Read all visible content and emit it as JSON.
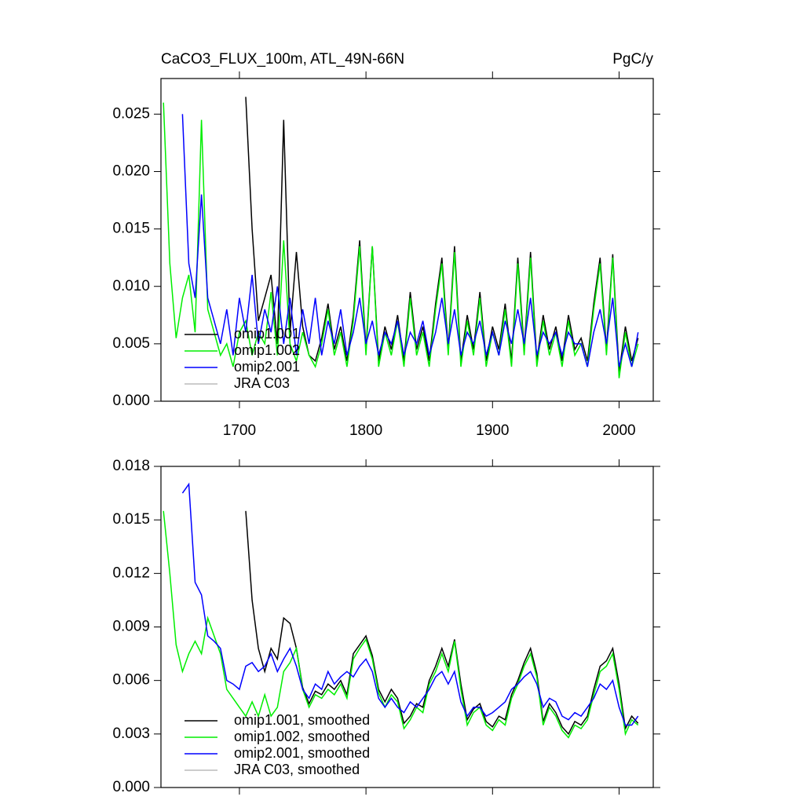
{
  "chart_data": [
    {
      "type": "line",
      "title": "CaCO3_FLUX_100m, ATL_49N-66N",
      "units": "PgC/y",
      "x": [
        1640,
        1645,
        1650,
        1655,
        1660,
        1665,
        1670,
        1675,
        1680,
        1685,
        1690,
        1695,
        1700,
        1705,
        1710,
        1715,
        1720,
        1725,
        1730,
        1735,
        1740,
        1745,
        1750,
        1755,
        1760,
        1765,
        1770,
        1775,
        1780,
        1785,
        1790,
        1795,
        1800,
        1805,
        1810,
        1815,
        1820,
        1825,
        1830,
        1835,
        1840,
        1845,
        1850,
        1855,
        1860,
        1865,
        1870,
        1875,
        1880,
        1885,
        1890,
        1895,
        1900,
        1905,
        1910,
        1915,
        1920,
        1925,
        1930,
        1935,
        1940,
        1945,
        1950,
        1955,
        1960,
        1965,
        1970,
        1975,
        1980,
        1985,
        1990,
        1995,
        2000,
        2005,
        2010,
        2015
      ],
      "series": [
        {
          "name": "omip1.001",
          "color": "#000000",
          "values": [
            null,
            null,
            null,
            null,
            null,
            null,
            null,
            null,
            null,
            null,
            null,
            null,
            null,
            0.0265,
            0.015,
            0.007,
            0.009,
            0.011,
            0.005,
            0.0245,
            0.006,
            0.013,
            0.0065,
            0.004,
            0.0035,
            0.0055,
            0.0085,
            0.0045,
            0.0065,
            0.0035,
            0.0075,
            0.014,
            0.0045,
            0.0135,
            0.0035,
            0.0065,
            0.0045,
            0.0075,
            0.0035,
            0.0095,
            0.0045,
            0.0065,
            0.0035,
            0.0085,
            0.0125,
            0.0045,
            0.0135,
            0.0035,
            0.0075,
            0.0045,
            0.0095,
            0.0035,
            0.0065,
            0.0045,
            0.0085,
            0.0035,
            0.0125,
            0.0045,
            0.013,
            0.0035,
            0.0075,
            0.0045,
            0.0065,
            0.0035,
            0.0075,
            0.0045,
            0.0055,
            0.0035,
            0.0085,
            0.0125,
            0.0045,
            0.0128,
            0.0025,
            0.0065,
            0.0035,
            0.0055
          ]
        },
        {
          "name": "omip1.002",
          "color": "#00ee00",
          "values": [
            0.026,
            0.012,
            0.0055,
            0.009,
            0.011,
            0.006,
            0.0245,
            0.008,
            0.006,
            0.004,
            0.005,
            0.003,
            0.006,
            0.007,
            0.004,
            0.006,
            0.005,
            0.0095,
            0.004,
            0.014,
            0.005,
            0.0035,
            0.006,
            0.004,
            0.003,
            0.005,
            0.008,
            0.004,
            0.006,
            0.003,
            0.007,
            0.0135,
            0.004,
            0.0135,
            0.003,
            0.006,
            0.004,
            0.007,
            0.003,
            0.009,
            0.004,
            0.006,
            0.003,
            0.008,
            0.012,
            0.004,
            0.013,
            0.003,
            0.007,
            0.004,
            0.009,
            0.003,
            0.006,
            0.004,
            0.008,
            0.003,
            0.012,
            0.004,
            0.0125,
            0.003,
            0.007,
            0.004,
            0.006,
            0.003,
            0.007,
            0.004,
            0.005,
            0.003,
            0.008,
            0.012,
            0.004,
            0.0125,
            0.002,
            0.006,
            0.003,
            0.005
          ]
        },
        {
          "name": "omip2.001",
          "color": "#0000ff",
          "values": [
            null,
            null,
            null,
            0.025,
            0.012,
            0.009,
            0.018,
            0.009,
            0.007,
            0.005,
            0.008,
            0.004,
            0.009,
            0.006,
            0.011,
            0.005,
            0.008,
            0.006,
            0.01,
            0.005,
            0.009,
            0.004,
            0.008,
            0.005,
            0.009,
            0.004,
            0.007,
            0.005,
            0.008,
            0.004,
            0.006,
            0.009,
            0.005,
            0.007,
            0.004,
            0.006,
            0.005,
            0.007,
            0.004,
            0.006,
            0.005,
            0.007,
            0.004,
            0.006,
            0.009,
            0.005,
            0.008,
            0.004,
            0.006,
            0.005,
            0.007,
            0.004,
            0.006,
            0.004,
            0.007,
            0.005,
            0.008,
            0.005,
            0.009,
            0.004,
            0.006,
            0.005,
            0.006,
            0.004,
            0.006,
            0.005,
            0.005,
            0.003,
            0.006,
            0.008,
            0.005,
            0.009,
            0.003,
            0.005,
            0.003,
            0.006
          ]
        },
        {
          "name": "JRA C03",
          "color": "#bbbbbb",
          "values": [
            null,
            null,
            null,
            null,
            null,
            null,
            null,
            null,
            null,
            null,
            null,
            null,
            null,
            null,
            null,
            null,
            null,
            null,
            null,
            null,
            null,
            null,
            null,
            null,
            null,
            null,
            null,
            null,
            null,
            null,
            null,
            null,
            null,
            null,
            null,
            null,
            null,
            null,
            null,
            null,
            null,
            null,
            null,
            null,
            null,
            null,
            null,
            null,
            null,
            null,
            null,
            null,
            null,
            null,
            null,
            null,
            null,
            null,
            null,
            null,
            null,
            null,
            null,
            null,
            null,
            null,
            null,
            null,
            null,
            null,
            null,
            null,
            null,
            null,
            null,
            null
          ]
        }
      ],
      "xlim": [
        1638,
        2027
      ],
      "xticks": [
        1700,
        1800,
        1900,
        2000
      ],
      "x_tick_labels": true,
      "ylim": [
        0,
        0.0281
      ],
      "yticks": [
        {
          "value": 0,
          "label": "0.000"
        },
        0.005,
        {
          "value": 0.01,
          "label": "0.010"
        },
        {
          "value": 0.015,
          "label": "0.015"
        },
        {
          "value": 0.02,
          "label": "0.020"
        },
        0.025
      ],
      "legend": "lower left"
    },
    {
      "type": "line",
      "x": [
        1640,
        1645,
        1650,
        1655,
        1660,
        1665,
        1670,
        1675,
        1680,
        1685,
        1690,
        1695,
        1700,
        1705,
        1710,
        1715,
        1720,
        1725,
        1730,
        1735,
        1740,
        1745,
        1750,
        1755,
        1760,
        1765,
        1770,
        1775,
        1780,
        1785,
        1790,
        1795,
        1800,
        1805,
        1810,
        1815,
        1820,
        1825,
        1830,
        1835,
        1840,
        1845,
        1850,
        1855,
        1860,
        1865,
        1870,
        1875,
        1880,
        1885,
        1890,
        1895,
        1900,
        1905,
        1910,
        1915,
        1920,
        1925,
        1930,
        1935,
        1940,
        1945,
        1950,
        1955,
        1960,
        1965,
        1970,
        1975,
        1980,
        1985,
        1990,
        1995,
        2000,
        2005,
        2010,
        2015
      ],
      "series": [
        {
          "name": "omip1.001, smoothed",
          "color": "#000000",
          "values": [
            null,
            null,
            null,
            null,
            null,
            null,
            null,
            null,
            null,
            null,
            null,
            null,
            null,
            0.0155,
            0.0105,
            0.0078,
            0.0065,
            0.0078,
            0.0072,
            0.0095,
            0.0092,
            0.0078,
            0.0056,
            0.0047,
            0.0054,
            0.0052,
            0.0058,
            0.0055,
            0.006,
            0.0052,
            0.0075,
            0.008,
            0.0085,
            0.0074,
            0.0055,
            0.0048,
            0.0055,
            0.005,
            0.0036,
            0.004,
            0.0047,
            0.0045,
            0.006,
            0.0068,
            0.0078,
            0.0068,
            0.0083,
            0.0058,
            0.0038,
            0.0044,
            0.0047,
            0.0037,
            0.0034,
            0.004,
            0.0038,
            0.0052,
            0.006,
            0.007,
            0.0078,
            0.0064,
            0.0037,
            0.0047,
            0.0042,
            0.0034,
            0.003,
            0.0037,
            0.0035,
            0.004,
            0.0055,
            0.0068,
            0.0071,
            0.0078,
            0.0058,
            0.0033,
            0.004,
            0.0036
          ]
        },
        {
          "name": "omip1.002, smoothed",
          "color": "#00ee00",
          "values": [
            0.0155,
            0.012,
            0.008,
            0.0065,
            0.0075,
            0.0082,
            0.0075,
            0.0095,
            0.0085,
            0.0075,
            0.0055,
            0.005,
            0.0045,
            0.004,
            0.0048,
            0.004,
            0.0052,
            0.004,
            0.0045,
            0.0065,
            0.007,
            0.0078,
            0.0055,
            0.0045,
            0.0052,
            0.005,
            0.0055,
            0.0052,
            0.0058,
            0.005,
            0.0072,
            0.0078,
            0.0083,
            0.0072,
            0.0053,
            0.0045,
            0.0052,
            0.0048,
            0.0033,
            0.0038,
            0.0045,
            0.0042,
            0.0058,
            0.0065,
            0.0075,
            0.0065,
            0.0082,
            0.0055,
            0.0035,
            0.0042,
            0.0045,
            0.0035,
            0.0032,
            0.0038,
            0.0035,
            0.005,
            0.0058,
            0.0068,
            0.0075,
            0.0062,
            0.0035,
            0.0045,
            0.004,
            0.0032,
            0.0028,
            0.0035,
            0.0033,
            0.0038,
            0.0052,
            0.0065,
            0.0068,
            0.0075,
            0.0055,
            0.003,
            0.0038,
            0.0035
          ]
        },
        {
          "name": "omip2.001, smoothed",
          "color": "#0000ff",
          "values": [
            null,
            null,
            null,
            0.0165,
            0.017,
            0.0115,
            0.0108,
            0.0085,
            0.0082,
            0.0078,
            0.006,
            0.0058,
            0.0055,
            0.0068,
            0.007,
            0.0065,
            0.0068,
            0.0075,
            0.0065,
            0.0072,
            0.0078,
            0.0068,
            0.0055,
            0.005,
            0.0058,
            0.0055,
            0.0065,
            0.0058,
            0.0062,
            0.0065,
            0.0062,
            0.0068,
            0.0072,
            0.0065,
            0.005,
            0.0045,
            0.005,
            0.0045,
            0.0042,
            0.0048,
            0.0045,
            0.005,
            0.0055,
            0.0062,
            0.0065,
            0.0058,
            0.0065,
            0.0048,
            0.004,
            0.0045,
            0.0045,
            0.004,
            0.0042,
            0.0045,
            0.0048,
            0.0055,
            0.0058,
            0.0062,
            0.0065,
            0.0058,
            0.0045,
            0.005,
            0.0048,
            0.004,
            0.0038,
            0.0042,
            0.004,
            0.0045,
            0.005,
            0.0058,
            0.0055,
            0.006,
            0.0045,
            0.0035,
            0.0035,
            0.004
          ]
        },
        {
          "name": "JRA C03, smoothed",
          "color": "#bbbbbb",
          "values": [
            null,
            null,
            null,
            null,
            null,
            null,
            null,
            null,
            null,
            null,
            null,
            null,
            null,
            null,
            null,
            null,
            null,
            null,
            null,
            null,
            null,
            null,
            null,
            null,
            null,
            null,
            null,
            null,
            null,
            null,
            null,
            null,
            null,
            null,
            null,
            null,
            null,
            null,
            null,
            null,
            null,
            null,
            null,
            null,
            null,
            null,
            null,
            null,
            null,
            null,
            null,
            null,
            null,
            null,
            null,
            null,
            null,
            null,
            null,
            null,
            null,
            null,
            null,
            null,
            null,
            null,
            null,
            null,
            null,
            null,
            null,
            null,
            null,
            null,
            null,
            null
          ]
        }
      ],
      "xlim": [
        1638,
        2027
      ],
      "xticks": [
        1700,
        1800,
        1900,
        2000
      ],
      "x_tick_labels": false,
      "ylim": [
        0,
        0.018
      ],
      "yticks": [
        {
          "value": 0,
          "label": "0.000"
        },
        0.003,
        0.006,
        0.009,
        0.012,
        0.015,
        0.018
      ],
      "legend": "lower left"
    }
  ]
}
